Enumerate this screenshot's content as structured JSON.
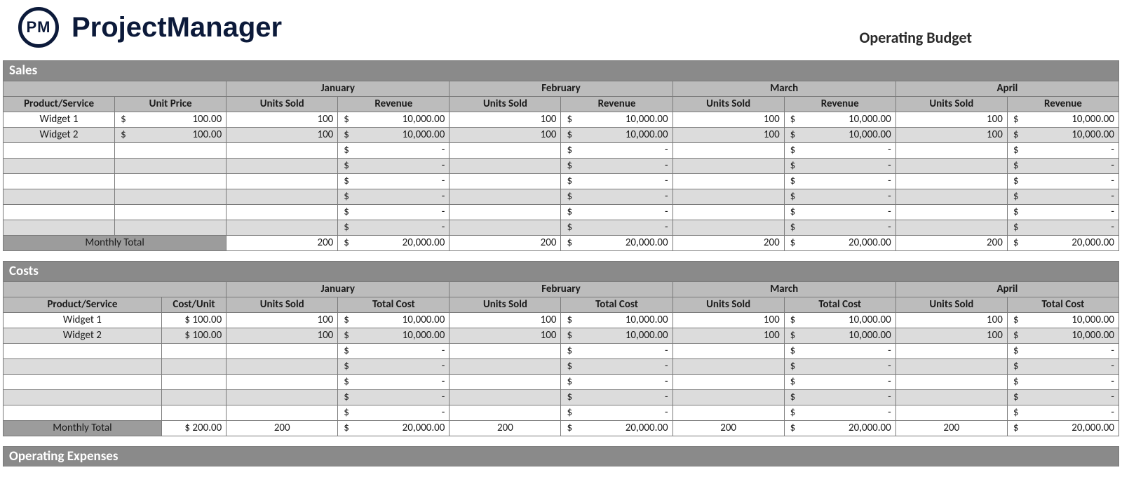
{
  "brand": {
    "badge": "PM",
    "name": "ProjectManager"
  },
  "docTitle": "Operating Budget",
  "months": [
    "January",
    "February",
    "March",
    "April"
  ],
  "sales": {
    "banner": "Sales",
    "headers": {
      "product": "Product/Service",
      "price": "Unit Price",
      "units": "Units Sold",
      "revenue": "Revenue"
    },
    "rows": [
      {
        "name": "Widget 1",
        "price": "100.00",
        "m": [
          {
            "u": "100",
            "r": "10,000.00"
          },
          {
            "u": "100",
            "r": "10,000.00"
          },
          {
            "u": "100",
            "r": "10,000.00"
          },
          {
            "u": "100",
            "r": "10,000.00"
          }
        ]
      },
      {
        "name": "Widget 2",
        "price": "100.00",
        "m": [
          {
            "u": "100",
            "r": "10,000.00"
          },
          {
            "u": "100",
            "r": "10,000.00"
          },
          {
            "u": "100",
            "r": "10,000.00"
          },
          {
            "u": "100",
            "r": "10,000.00"
          }
        ]
      },
      {
        "name": "",
        "price": "",
        "m": [
          {
            "u": "",
            "r": "-"
          },
          {
            "u": "",
            "r": "-"
          },
          {
            "u": "",
            "r": "-"
          },
          {
            "u": "",
            "r": "-"
          }
        ]
      },
      {
        "name": "",
        "price": "",
        "m": [
          {
            "u": "",
            "r": "-"
          },
          {
            "u": "",
            "r": "-"
          },
          {
            "u": "",
            "r": "-"
          },
          {
            "u": "",
            "r": "-"
          }
        ]
      },
      {
        "name": "",
        "price": "",
        "m": [
          {
            "u": "",
            "r": "-"
          },
          {
            "u": "",
            "r": "-"
          },
          {
            "u": "",
            "r": "-"
          },
          {
            "u": "",
            "r": "-"
          }
        ]
      },
      {
        "name": "",
        "price": "",
        "m": [
          {
            "u": "",
            "r": "-"
          },
          {
            "u": "",
            "r": "-"
          },
          {
            "u": "",
            "r": "-"
          },
          {
            "u": "",
            "r": "-"
          }
        ]
      },
      {
        "name": "",
        "price": "",
        "m": [
          {
            "u": "",
            "r": "-"
          },
          {
            "u": "",
            "r": "-"
          },
          {
            "u": "",
            "r": "-"
          },
          {
            "u": "",
            "r": "-"
          }
        ]
      },
      {
        "name": "",
        "price": "",
        "m": [
          {
            "u": "",
            "r": "-"
          },
          {
            "u": "",
            "r": "-"
          },
          {
            "u": "",
            "r": "-"
          },
          {
            "u": "",
            "r": "-"
          }
        ]
      }
    ],
    "total": {
      "label": "Monthly Total",
      "m": [
        {
          "u": "200",
          "r": "20,000.00"
        },
        {
          "u": "200",
          "r": "20,000.00"
        },
        {
          "u": "200",
          "r": "20,000.00"
        },
        {
          "u": "200",
          "r": "20,000.00"
        }
      ]
    }
  },
  "costs": {
    "banner": "Costs",
    "headers": {
      "product": "Product/Service",
      "cost": "Cost/Unit",
      "units": "Units Sold",
      "total": "Total Cost"
    },
    "rows": [
      {
        "name": "Widget 1",
        "cost": "$ 100.00",
        "m": [
          {
            "u": "100",
            "t": "10,000.00"
          },
          {
            "u": "100",
            "t": "10,000.00"
          },
          {
            "u": "100",
            "t": "10,000.00"
          },
          {
            "u": "100",
            "t": "10,000.00"
          }
        ]
      },
      {
        "name": "Widget 2",
        "cost": "$ 100.00",
        "m": [
          {
            "u": "100",
            "t": "10,000.00"
          },
          {
            "u": "100",
            "t": "10,000.00"
          },
          {
            "u": "100",
            "t": "10,000.00"
          },
          {
            "u": "100",
            "t": "10,000.00"
          }
        ]
      },
      {
        "name": "",
        "cost": "",
        "m": [
          {
            "u": "",
            "t": "-"
          },
          {
            "u": "",
            "t": "-"
          },
          {
            "u": "",
            "t": "-"
          },
          {
            "u": "",
            "t": "-"
          }
        ]
      },
      {
        "name": "",
        "cost": "",
        "m": [
          {
            "u": "",
            "t": "-"
          },
          {
            "u": "",
            "t": "-"
          },
          {
            "u": "",
            "t": "-"
          },
          {
            "u": "",
            "t": "-"
          }
        ]
      },
      {
        "name": "",
        "cost": "",
        "m": [
          {
            "u": "",
            "t": "-"
          },
          {
            "u": "",
            "t": "-"
          },
          {
            "u": "",
            "t": "-"
          },
          {
            "u": "",
            "t": "-"
          }
        ]
      },
      {
        "name": "",
        "cost": "",
        "m": [
          {
            "u": "",
            "t": "-"
          },
          {
            "u": "",
            "t": "-"
          },
          {
            "u": "",
            "t": "-"
          },
          {
            "u": "",
            "t": "-"
          }
        ]
      },
      {
        "name": "",
        "cost": "",
        "m": [
          {
            "u": "",
            "t": "-"
          },
          {
            "u": "",
            "t": "-"
          },
          {
            "u": "",
            "t": "-"
          },
          {
            "u": "",
            "t": "-"
          }
        ]
      }
    ],
    "total": {
      "label": "Monthly Total",
      "cost": "$ 200.00",
      "m": [
        {
          "u": "200",
          "t": "20,000.00"
        },
        {
          "u": "200",
          "t": "20,000.00"
        },
        {
          "u": "200",
          "t": "20,000.00"
        },
        {
          "u": "200",
          "t": "20,000.00"
        }
      ]
    }
  },
  "opex": {
    "banner": "Operating Expenses"
  },
  "style": {
    "colors": {
      "background": "#ffffff",
      "border": "#7a7a7a",
      "sectionBanner": "#8a8a8a",
      "headerRow": "#bcbcbc",
      "rowLight": "#ffffff",
      "rowAlt": "#dcdcdc",
      "totalLabelBg": "#9c9c9c",
      "brandInk": "#0c1a3a",
      "bannerText": "#ffffff",
      "text": "#1a1a1a"
    },
    "fonts": {
      "body": "Calibri, Arial, sans-serif",
      "bodySizePt": 11,
      "bannerSizePt": 14,
      "brandSizePt": 30,
      "docTitleSizePt": 16
    },
    "layout": {
      "pageWidthPx": 1600,
      "pageHeightPx": 717,
      "monthsVisible": 4,
      "salesCols": {
        "productPx": 155,
        "pricePx": 155,
        "unitsPx": 155,
        "revenuePx": 155
      },
      "costsCols": {
        "productPx": 220,
        "costUnitPx": 90,
        "unitsPx": 155,
        "totalPx": 155
      },
      "rowHeightPx": 21
    }
  }
}
